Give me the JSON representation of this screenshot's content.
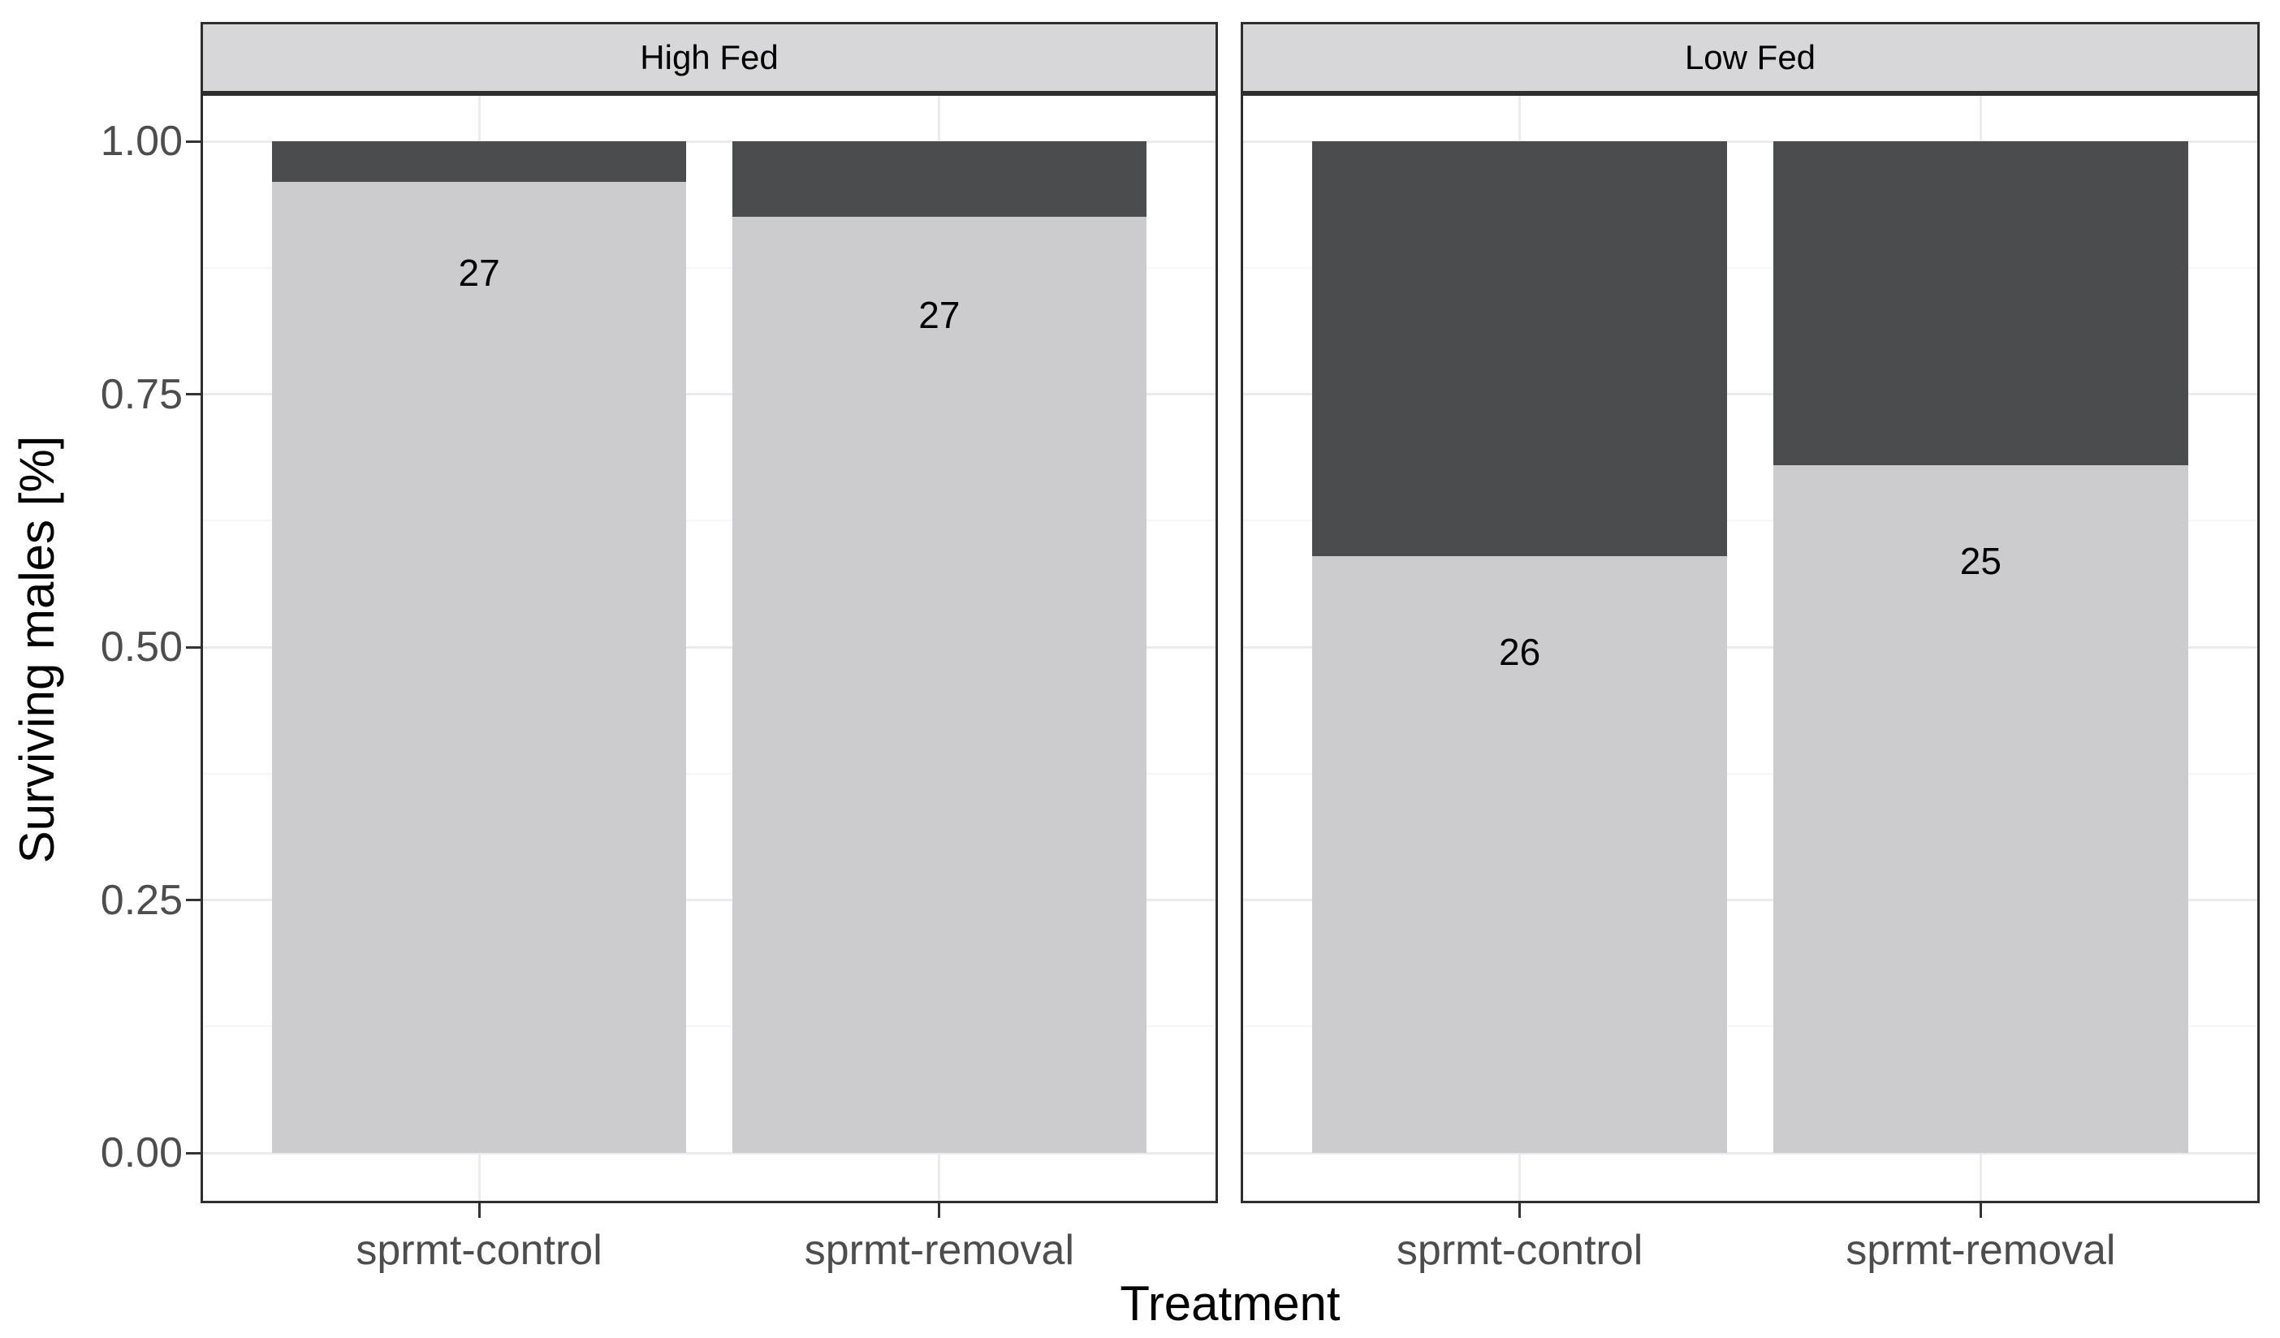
{
  "chart_data": {
    "type": "bar",
    "stacked": true,
    "orientation": "vertical",
    "xlabel": "Treatment",
    "ylabel": "Surviving males [%]",
    "ylim": [
      0,
      1
    ],
    "grid": "on",
    "legend": "none",
    "y_ticks": [
      {
        "value": 0.0,
        "label": "0.00"
      },
      {
        "value": 0.25,
        "label": "0.25"
      },
      {
        "value": 0.5,
        "label": "0.50"
      },
      {
        "value": 0.75,
        "label": "0.75"
      },
      {
        "value": 1.0,
        "label": "1.00"
      }
    ],
    "y_minor_gridlines": [
      0.125,
      0.375,
      0.625,
      0.875
    ],
    "facets": [
      {
        "label": "High Fed",
        "bars": [
          {
            "category": "sprmt-control",
            "count_label": "27",
            "count_label_y": 0.87,
            "segments": {
              "light": 0.96,
              "dark": 0.04
            },
            "total": 1.0
          },
          {
            "category": "sprmt-removal",
            "count_label": "27",
            "count_label_y": 0.828,
            "segments": {
              "light": 0.925,
              "dark": 0.075
            },
            "total": 1.0
          }
        ]
      },
      {
        "label": "Low Fed",
        "bars": [
          {
            "category": "sprmt-control",
            "count_label": "26",
            "count_label_y": 0.495,
            "segments": {
              "light": 0.59,
              "dark": 0.41
            },
            "total": 1.0
          },
          {
            "category": "sprmt-removal",
            "count_label": "25",
            "count_label_y": 0.585,
            "segments": {
              "light": 0.68,
              "dark": 0.32
            },
            "total": 1.0
          }
        ]
      }
    ],
    "colors": {
      "segment_light": "#cccccf",
      "segment_dark": "#4b4c4e",
      "strip_background": "#d7d7d9",
      "panel_background": "#ffffff",
      "panel_border": "#2e2e2e",
      "grid_major": "#ebebeb",
      "grid_minor": "#f5f5f5",
      "tick_mark": "#333333",
      "tick_text": "#4d4d4d",
      "label_text": "#000000"
    }
  }
}
